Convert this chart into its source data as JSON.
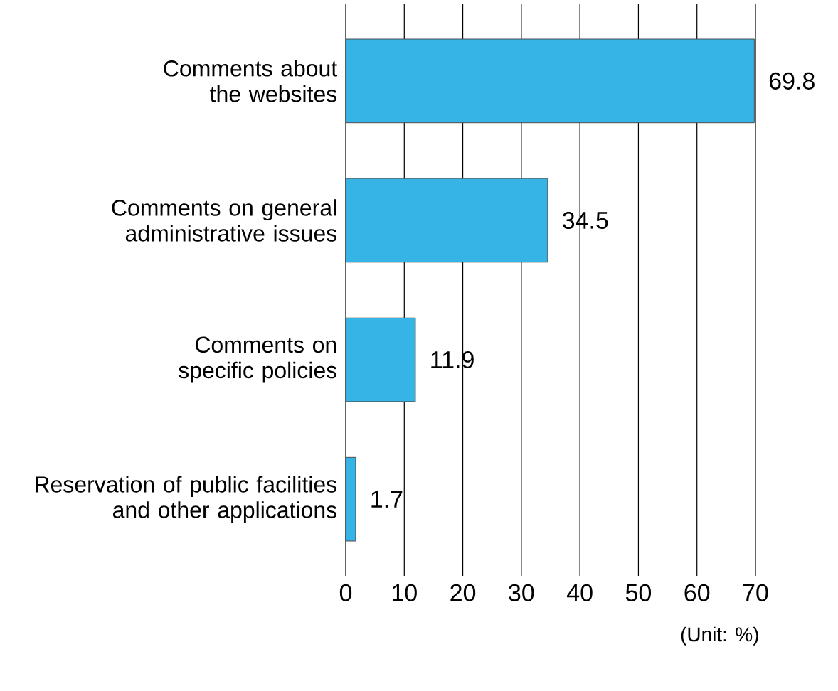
{
  "chart_data": {
    "type": "bar",
    "orientation": "horizontal",
    "categories": [
      "Comments about the websites",
      "Comments on general administrative issues",
      "Comments on specific policies",
      "Reservation of public facilities and other applications"
    ],
    "values": [
      69.8,
      34.5,
      11.9,
      1.7
    ],
    "color": "#36b4e6",
    "xlim": [
      0,
      70
    ],
    "xticks": [
      0,
      10,
      20,
      30,
      40,
      50,
      60,
      70
    ],
    "grid": "x",
    "data_labels": true,
    "annotations": [
      "(Unit: %)"
    ]
  }
}
